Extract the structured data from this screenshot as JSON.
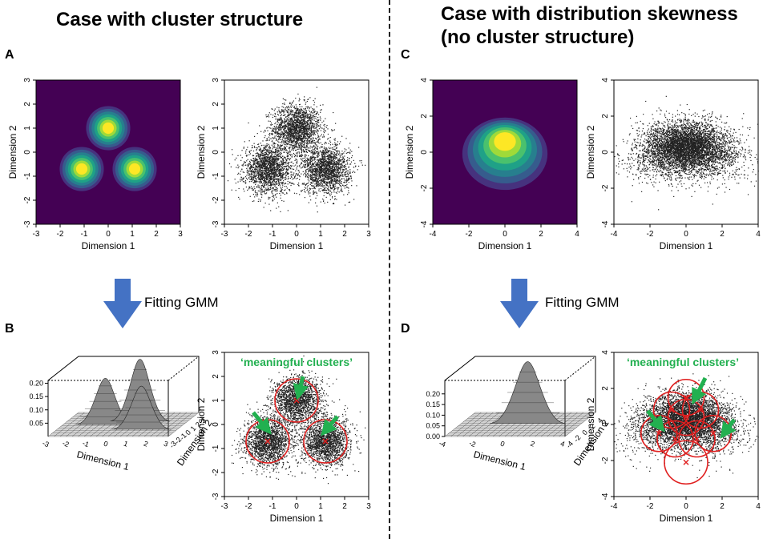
{
  "headings": {
    "left": "Case with cluster structure",
    "right_line1": "Case with distribution skewness",
    "right_line2": "(no cluster structure)"
  },
  "panel_letters": {
    "a": "A",
    "b": "B",
    "c": "C",
    "d": "D"
  },
  "step_label": "Fitting GMM",
  "colors": {
    "arrow": "#4472c4",
    "green": "#22b050",
    "red": "#e02020",
    "viridis_bg": "#440154"
  },
  "chart_data": [
    {
      "type": "heatmap",
      "panel": "A",
      "xlabel": "Dimension 1",
      "ylabel": "Dimension 2",
      "xlim": [
        -3,
        3
      ],
      "ylim": [
        -3,
        3
      ],
      "xticks": [
        "-3",
        "-2",
        "-1",
        "0",
        "1",
        "2",
        "3"
      ],
      "yticks": [
        "-3",
        "-2",
        "-1",
        "0",
        "1",
        "2",
        "3"
      ],
      "components": [
        {
          "x": 0,
          "y": 1,
          "sd": 0.35
        },
        {
          "x": -1.1,
          "y": -0.7,
          "sd": 0.35
        },
        {
          "x": 1.1,
          "y": -0.7,
          "sd": 0.35
        }
      ]
    },
    {
      "type": "scatter",
      "panel": "A",
      "xlabel": "Dimension 1",
      "ylabel": "Dimension 2",
      "xlim": [
        -3,
        3
      ],
      "ylim": [
        -3,
        3
      ],
      "xticks": [
        "-3",
        "-2",
        "-1",
        "0",
        "1",
        "2",
        "3"
      ],
      "yticks": [
        "-3",
        "-2",
        "-1",
        "0",
        "1",
        "2",
        "3"
      ],
      "components": [
        {
          "x": 0,
          "y": 1,
          "sd": 0.5
        },
        {
          "x": -1.2,
          "y": -0.7,
          "sd": 0.5
        },
        {
          "x": 1.2,
          "y": -0.7,
          "sd": 0.5
        }
      ]
    },
    {
      "type": "heatmap",
      "panel": "C",
      "xlabel": "Dimension 1",
      "ylabel": "Dimension 2",
      "xlim": [
        -4,
        4
      ],
      "ylim": [
        -4,
        4
      ],
      "xticks": [
        "-4",
        "-2",
        "0",
        "2",
        "4"
      ],
      "yticks": [
        "-4",
        "-2",
        "0",
        "2",
        "4"
      ],
      "components": [
        {
          "x": 0,
          "y": 0.7,
          "sd": 0.9
        }
      ]
    },
    {
      "type": "scatter",
      "panel": "C",
      "xlabel": "Dimension 1",
      "ylabel": "Dimension 2",
      "xlim": [
        -4,
        4
      ],
      "ylim": [
        -4,
        4
      ],
      "xticks": [
        "-4",
        "-2",
        "0",
        "2",
        "4"
      ],
      "yticks": [
        "-4",
        "-2",
        "0",
        "2",
        "4"
      ],
      "components": [
        {
          "x": 0,
          "y": 0.5,
          "sd": 0.9
        }
      ]
    },
    {
      "type": "surface",
      "panel": "B",
      "xlabel": "Dimension 1",
      "ylabel": "Dimension 2",
      "xticks": [
        "-3",
        "-2",
        "-1",
        "0",
        "1",
        "2",
        "3"
      ],
      "yticks": [
        "-3",
        "-2",
        "-1",
        "0",
        "1",
        "2",
        "3"
      ],
      "zticks": [
        "0.05",
        "0.10",
        "0.15",
        "0.20"
      ]
    },
    {
      "type": "scatter",
      "panel": "B",
      "xlabel": "Dimension 1",
      "ylabel": "Dimension 2",
      "xlim": [
        -3,
        3
      ],
      "ylim": [
        -3,
        3
      ],
      "xticks": [
        "-3",
        "-2",
        "-1",
        "0",
        "1",
        "2",
        "3"
      ],
      "yticks": [
        "-3",
        "-2",
        "-1",
        "0",
        "1",
        "2",
        "3"
      ],
      "annotation": "‘meaningful clusters’",
      "fitted_components": [
        {
          "x": 0,
          "y": 1,
          "r": 0.9
        },
        {
          "x": -1.2,
          "y": -0.7,
          "r": 0.9
        },
        {
          "x": 1.2,
          "y": -0.7,
          "r": 0.9
        }
      ]
    },
    {
      "type": "surface",
      "panel": "D",
      "xlabel": "Dimension 1",
      "ylabel": "Dimension 2",
      "xticks": [
        "-4",
        "-2",
        "0",
        "2",
        "4"
      ],
      "yticks": [
        "-4",
        "-2",
        "0",
        "2",
        "4"
      ],
      "zticks": [
        "0.00",
        "0.05",
        "0.10",
        "0.15",
        "0.20"
      ]
    },
    {
      "type": "scatter",
      "panel": "D",
      "xlabel": "Dimension 1",
      "ylabel": "Dimension 2",
      "xlim": [
        -4,
        4
      ],
      "ylim": [
        -4,
        4
      ],
      "xticks": [
        "-4",
        "-2",
        "0",
        "2",
        "4"
      ],
      "yticks": [
        "-4",
        "-2",
        "0",
        "2",
        "4"
      ],
      "annotation": "‘meaningful clusters’",
      "fitted_components": [
        {
          "x": 0,
          "y": 1.5,
          "r": 1.0
        },
        {
          "x": -0.8,
          "y": 0.8,
          "r": 1.0
        },
        {
          "x": 0.8,
          "y": 0.8,
          "r": 1.0
        },
        {
          "x": 0,
          "y": 0.4,
          "r": 1.0
        },
        {
          "x": -1.5,
          "y": -0.5,
          "r": 1.0
        },
        {
          "x": 1.5,
          "y": -0.5,
          "r": 1.0
        },
        {
          "x": -0.6,
          "y": -0.8,
          "r": 1.0
        },
        {
          "x": 0.6,
          "y": -0.8,
          "r": 1.0
        },
        {
          "x": 0,
          "y": -2.1,
          "r": 1.2
        }
      ]
    }
  ]
}
